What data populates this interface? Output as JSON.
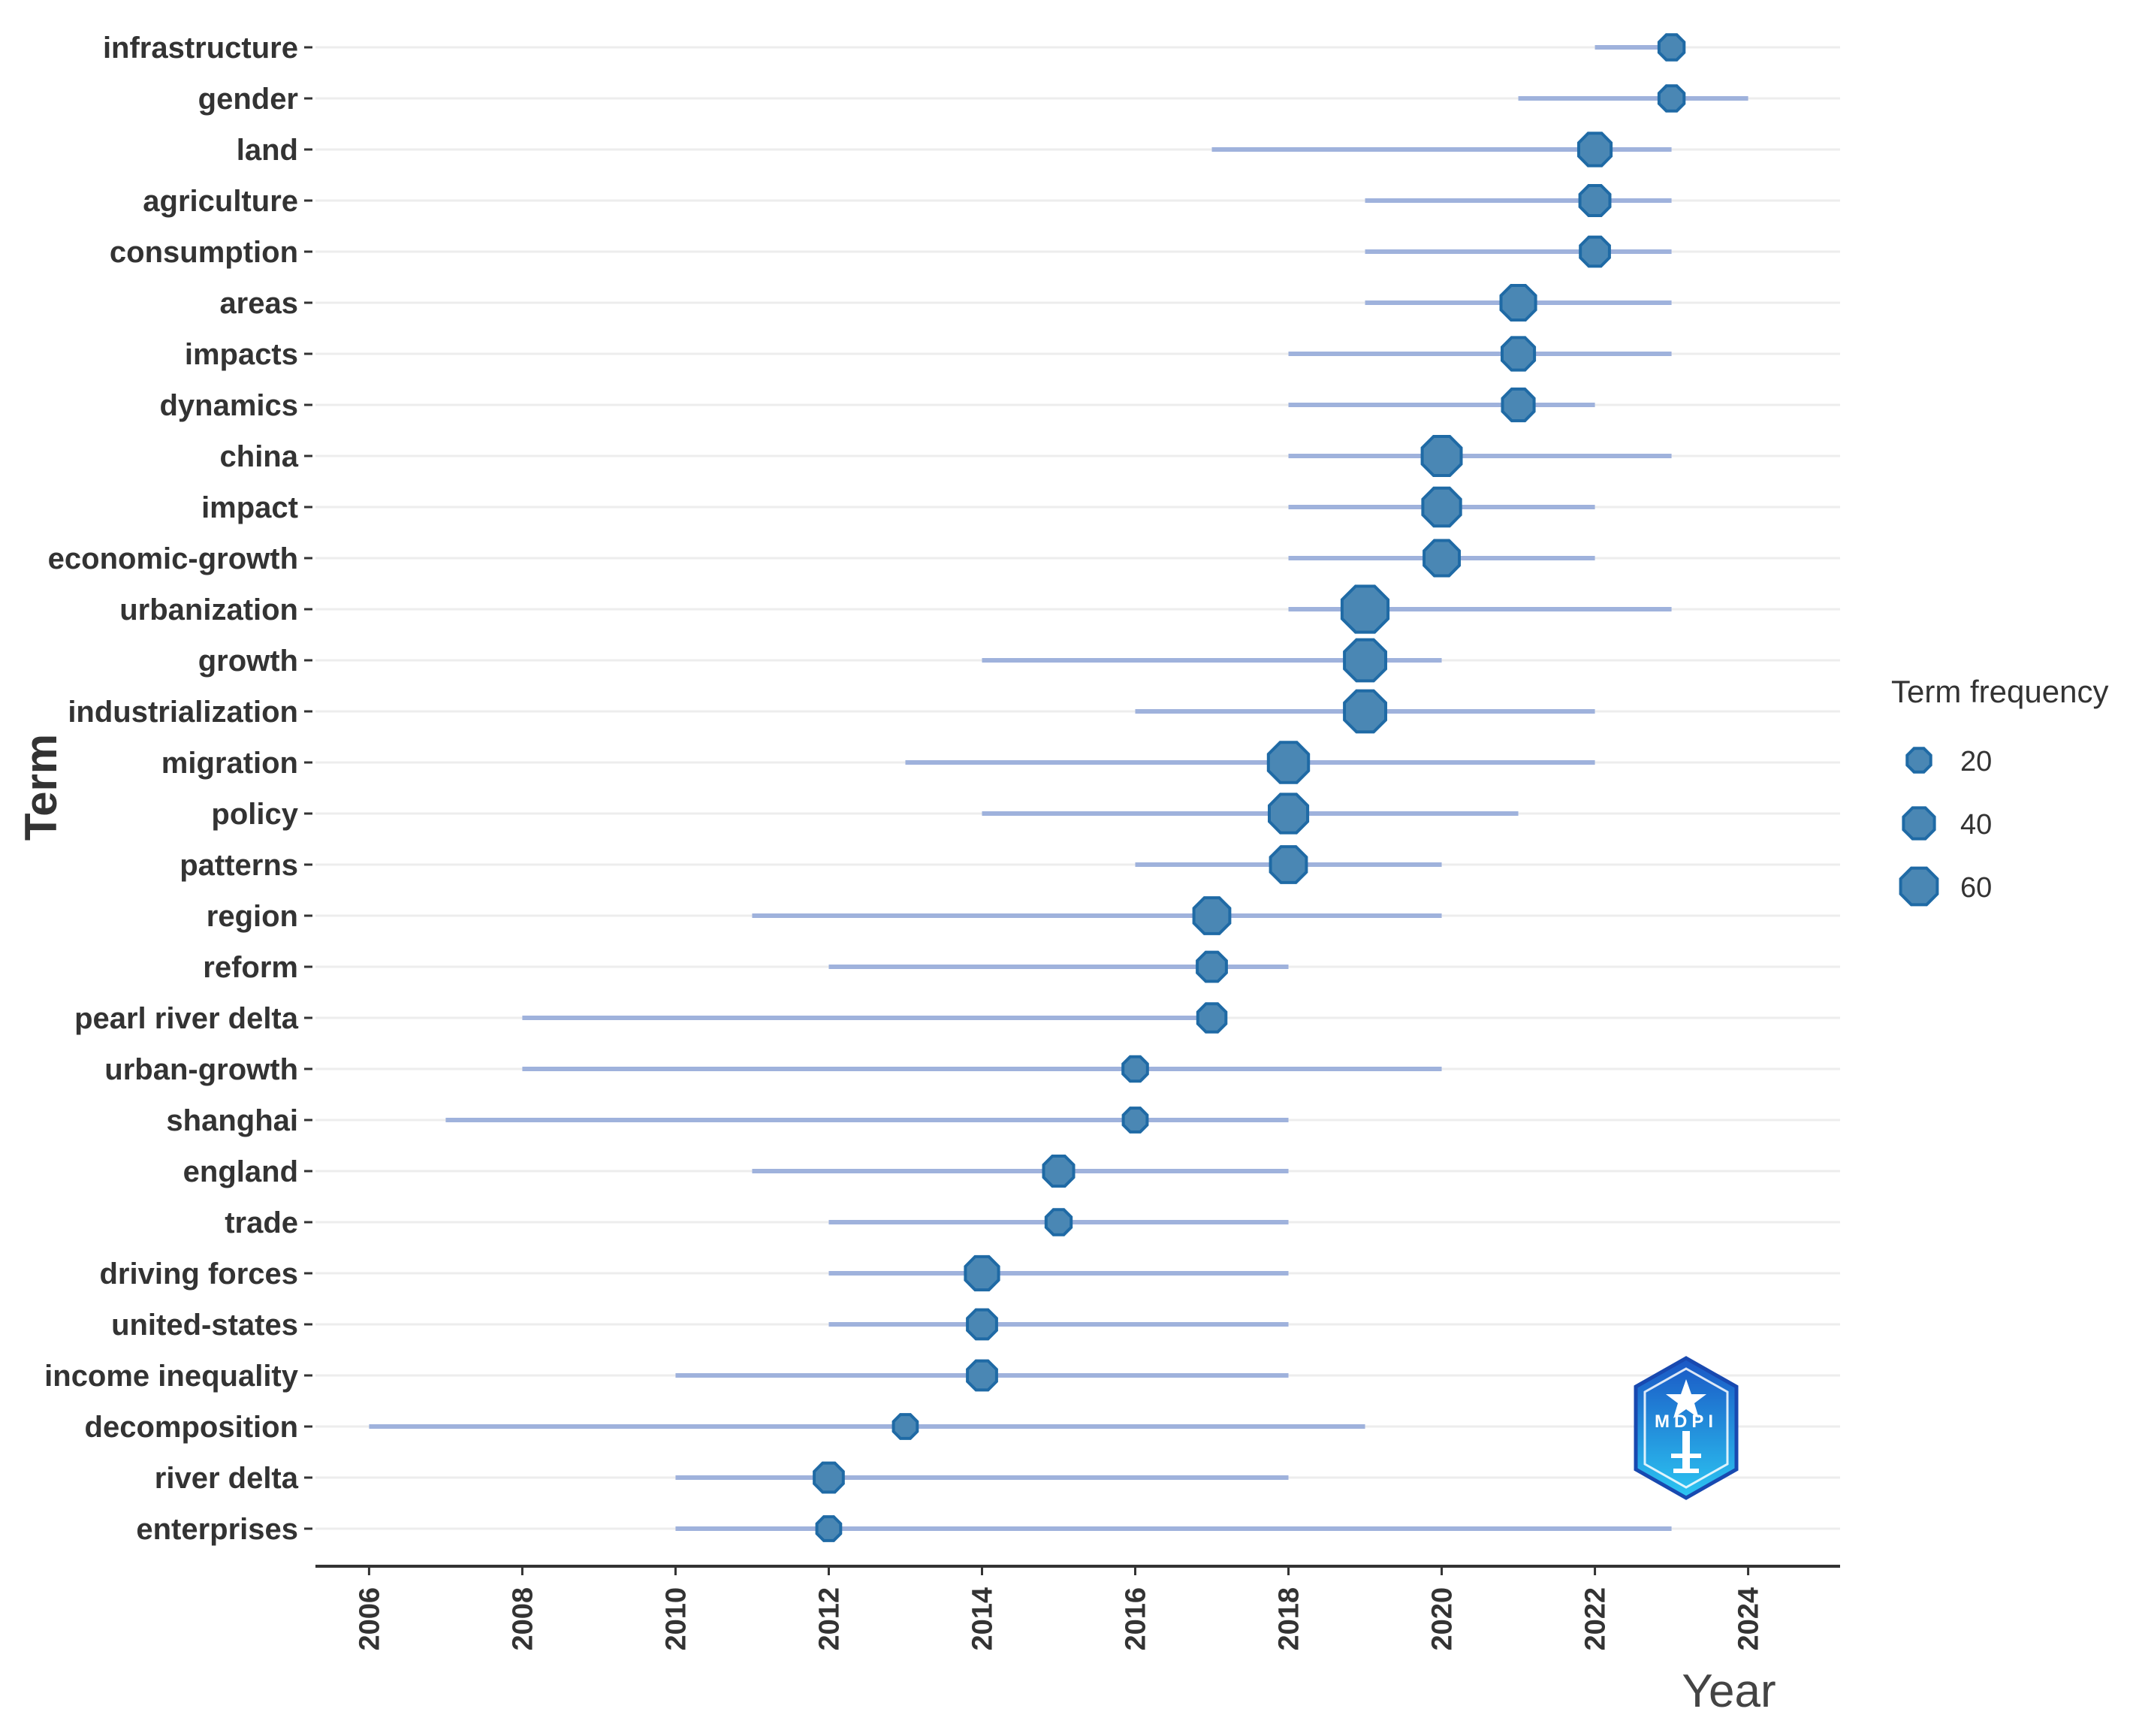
{
  "chart_data": {
    "type": "scatter",
    "title": "",
    "xlabel": "Year",
    "ylabel": "Term",
    "xlim": [
      2005.3,
      2025.2
    ],
    "xticks": [
      2006,
      2008,
      2010,
      2012,
      2014,
      2016,
      2018,
      2020,
      2022,
      2024
    ],
    "grid": "horizontal",
    "legend": {
      "title": "Term frequency",
      "position": "right",
      "entries": [
        {
          "label": "20",
          "value": 20
        },
        {
          "label": "40",
          "value": 40
        },
        {
          "label": "60",
          "value": 60
        }
      ]
    },
    "terms": [
      {
        "term": "infrastructure",
        "start": 2022,
        "peak": 2023,
        "end": 2023,
        "freq": 12
      },
      {
        "term": "gender",
        "start": 2021,
        "peak": 2023,
        "end": 2024,
        "freq": 12
      },
      {
        "term": "land",
        "start": 2017,
        "peak": 2022,
        "end": 2023,
        "freq": 28
      },
      {
        "term": "agriculture",
        "start": 2019,
        "peak": 2022,
        "end": 2023,
        "freq": 22
      },
      {
        "term": "consumption",
        "start": 2019,
        "peak": 2022,
        "end": 2023,
        "freq": 20
      },
      {
        "term": "areas",
        "start": 2019,
        "peak": 2021,
        "end": 2023,
        "freq": 34
      },
      {
        "term": "impacts",
        "start": 2018,
        "peak": 2021,
        "end": 2023,
        "freq": 28
      },
      {
        "term": "dynamics",
        "start": 2018,
        "peak": 2021,
        "end": 2022,
        "freq": 26
      },
      {
        "term": "china",
        "start": 2018,
        "peak": 2020,
        "end": 2023,
        "freq": 48
      },
      {
        "term": "impact",
        "start": 2018,
        "peak": 2020,
        "end": 2022,
        "freq": 44
      },
      {
        "term": "economic-growth",
        "start": 2018,
        "peak": 2020,
        "end": 2022,
        "freq": 36
      },
      {
        "term": "urbanization",
        "start": 2018,
        "peak": 2019,
        "end": 2023,
        "freq": 75
      },
      {
        "term": "growth",
        "start": 2014,
        "peak": 2019,
        "end": 2020,
        "freq": 56
      },
      {
        "term": "industrialization",
        "start": 2016,
        "peak": 2019,
        "end": 2022,
        "freq": 56
      },
      {
        "term": "migration",
        "start": 2013,
        "peak": 2018,
        "end": 2022,
        "freq": 52
      },
      {
        "term": "policy",
        "start": 2014,
        "peak": 2018,
        "end": 2021,
        "freq": 46
      },
      {
        "term": "patterns",
        "start": 2016,
        "peak": 2018,
        "end": 2020,
        "freq": 38
      },
      {
        "term": "region",
        "start": 2011,
        "peak": 2017,
        "end": 2020,
        "freq": 38
      },
      {
        "term": "reform",
        "start": 2012,
        "peak": 2017,
        "end": 2018,
        "freq": 20
      },
      {
        "term": "pearl river delta",
        "start": 2008,
        "peak": 2017,
        "end": 2017,
        "freq": 18
      },
      {
        "term": "urban-growth",
        "start": 2008,
        "peak": 2016,
        "end": 2020,
        "freq": 11
      },
      {
        "term": "shanghai",
        "start": 2007,
        "peak": 2016,
        "end": 2018,
        "freq": 10
      },
      {
        "term": "england",
        "start": 2011,
        "peak": 2015,
        "end": 2018,
        "freq": 22
      },
      {
        "term": "trade",
        "start": 2012,
        "peak": 2015,
        "end": 2018,
        "freq": 12
      },
      {
        "term": "driving forces",
        "start": 2012,
        "peak": 2014,
        "end": 2018,
        "freq": 30
      },
      {
        "term": "united-states",
        "start": 2012,
        "peak": 2014,
        "end": 2018,
        "freq": 20
      },
      {
        "term": "income inequality",
        "start": 2010,
        "peak": 2014,
        "end": 2018,
        "freq": 20
      },
      {
        "term": "decomposition",
        "start": 2006,
        "peak": 2013,
        "end": 2019,
        "freq": 10
      },
      {
        "term": "river delta",
        "start": 2010,
        "peak": 2012,
        "end": 2018,
        "freq": 20
      },
      {
        "term": "enterprises",
        "start": 2010,
        "peak": 2012,
        "end": 2023,
        "freq": 10
      }
    ]
  },
  "colors": {
    "point_fill": "#4a87b4",
    "point_stroke": "#1f6aa5",
    "segment": "#9fb2dc",
    "grid": "#ededed",
    "axis": "#333333",
    "text": "#333333"
  },
  "logo": {
    "name": "publisher-logo",
    "text": "MDPI"
  }
}
